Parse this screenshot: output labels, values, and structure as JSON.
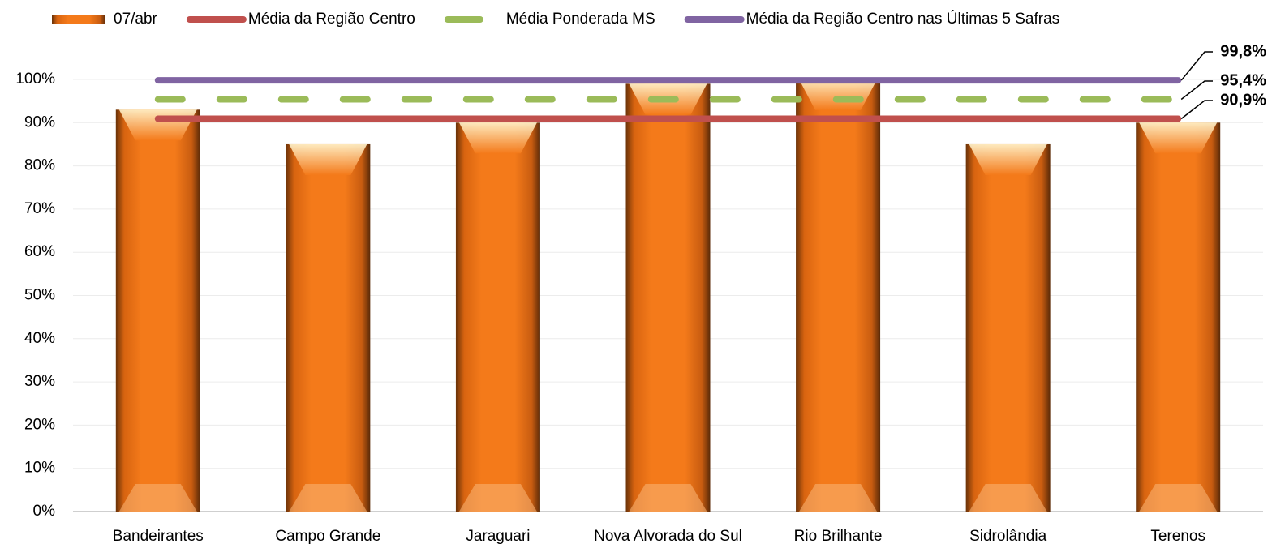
{
  "chart_data": {
    "type": "bar",
    "categories": [
      "Bandeirantes",
      "Campo Grande",
      "Jaraguari",
      "Nova Alvorada do Sul",
      "Rio Brilhante",
      "Sidrolândia",
      "Terenos"
    ],
    "series": [
      {
        "name": "07/abr",
        "color": "#f07818",
        "values": [
          93,
          85,
          90,
          99,
          100,
          85,
          90
        ]
      }
    ],
    "reference_lines": [
      {
        "name": "Média da Região Centro",
        "color": "#c0504d",
        "style": "solid",
        "value": 90.9,
        "value_label": "90,9%"
      },
      {
        "name": "Média Ponderada MS",
        "color": "#9bbb59",
        "style": "dashed",
        "value": 95.4,
        "value_label": "95,4%"
      },
      {
        "name": "Média da Região Centro nas Últimas 5 Safras",
        "color": "#8064a2",
        "style": "solid",
        "value": 99.8,
        "value_label": "99,8%"
      }
    ],
    "ylim": [
      0,
      100
    ],
    "yticks": [
      {
        "value": 0,
        "label": "0%"
      },
      {
        "value": 10,
        "label": "10%"
      },
      {
        "value": 20,
        "label": "20%"
      },
      {
        "value": 30,
        "label": "30%"
      },
      {
        "value": 40,
        "label": "40%"
      },
      {
        "value": 50,
        "label": "50%"
      },
      {
        "value": 60,
        "label": "60%"
      },
      {
        "value": 70,
        "label": "70%"
      },
      {
        "value": 80,
        "label": "80%"
      },
      {
        "value": 90,
        "label": "90%"
      },
      {
        "value": 100,
        "label": "100%"
      }
    ],
    "grid": true
  }
}
